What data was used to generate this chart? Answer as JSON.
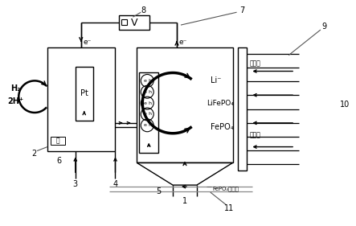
{
  "bg_color": "#ffffff",
  "line_color": "#000000",
  "fig_width": 4.43,
  "fig_height": 2.81,
  "dpi": 100,
  "labels": {
    "H2": "H₂",
    "2Hplus": "2H⁺",
    "Pt": "Pt",
    "eminus_left": "e⁻",
    "eminus_right": "e⁻",
    "Li_label": "Li⁻",
    "LiFePO4": "LiFePO₄",
    "FePO4_label": "FePO₄",
    "chukou": "出料口",
    "jinkou": "进料口",
    "FePoShouji": "FePO₄收集口",
    "V_symbol": "V",
    "membrane": "膜",
    "num1": "1",
    "num2": "2",
    "num3": "3",
    "num4": "4",
    "num5": "5",
    "num6": "6",
    "num7": "7",
    "num8": "8",
    "num9": "9",
    "num10": "10",
    "num11": "11"
  }
}
